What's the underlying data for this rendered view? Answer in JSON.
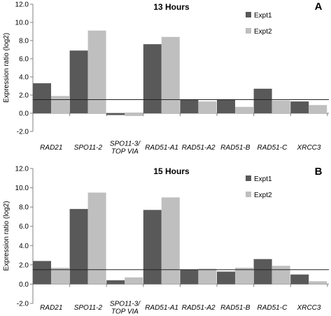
{
  "colors": {
    "expt1": "#595959",
    "expt2": "#bfbfbf",
    "threshold": "#222222",
    "axis": "#808080"
  },
  "chart_data": [
    {
      "type": "bar",
      "panel_label": "A",
      "title": "13 Hours",
      "ylabel": "Expression ratio (log2)",
      "xlabel": "",
      "ylim": [
        -2,
        12
      ],
      "yticks": [
        -2,
        0,
        2,
        4,
        6,
        8,
        10,
        12
      ],
      "ytick_labels": [
        "-2.0",
        "0.0",
        "2.0",
        "4.0",
        "6.0",
        "8.0",
        "10.0",
        "12.0"
      ],
      "threshold": 1.5,
      "legend_position": "top-right",
      "categories": [
        [
          "RAD21"
        ],
        [
          "SPO11-2"
        ],
        [
          "SPO11-3/",
          "TOP VIA"
        ],
        [
          "RAD51-A1"
        ],
        [
          "RAD51-A2"
        ],
        [
          "RAD51-B"
        ],
        [
          "RAD51-C"
        ],
        [
          "XRCC3"
        ]
      ],
      "series": [
        {
          "name": "Expt1",
          "values": [
            3.3,
            6.9,
            -0.2,
            7.6,
            1.5,
            1.5,
            2.7,
            1.3
          ]
        },
        {
          "name": "Expt2",
          "values": [
            1.9,
            9.1,
            -0.3,
            8.4,
            1.3,
            0.7,
            1.4,
            0.9
          ]
        }
      ]
    },
    {
      "type": "bar",
      "panel_label": "B",
      "title": "15 Hours",
      "ylabel": "Expression ratio (log2)",
      "xlabel": "",
      "ylim": [
        -2,
        12
      ],
      "yticks": [
        -2,
        0,
        2,
        4,
        6,
        8,
        10,
        12
      ],
      "ytick_labels": [
        "-2.0",
        "0.0",
        "2.0",
        "4.0",
        "6.0",
        "8.0",
        "10.0",
        "12.0"
      ],
      "threshold": 1.5,
      "legend_position": "top-right",
      "categories": [
        [
          "RAD21"
        ],
        [
          "SPO11-2"
        ],
        [
          "SPO11-3/",
          "TOP VIA"
        ],
        [
          "RAD51-A1"
        ],
        [
          "RAD51-A2"
        ],
        [
          "RAD51-B"
        ],
        [
          "RAD51-C"
        ],
        [
          "XRCC3"
        ]
      ],
      "series": [
        {
          "name": "Expt1",
          "values": [
            2.4,
            7.8,
            0.4,
            7.7,
            1.5,
            1.3,
            2.6,
            1.0
          ]
        },
        {
          "name": "Expt2",
          "values": [
            1.7,
            9.5,
            0.7,
            9.0,
            1.6,
            1.7,
            1.9,
            0.3
          ]
        }
      ]
    }
  ]
}
